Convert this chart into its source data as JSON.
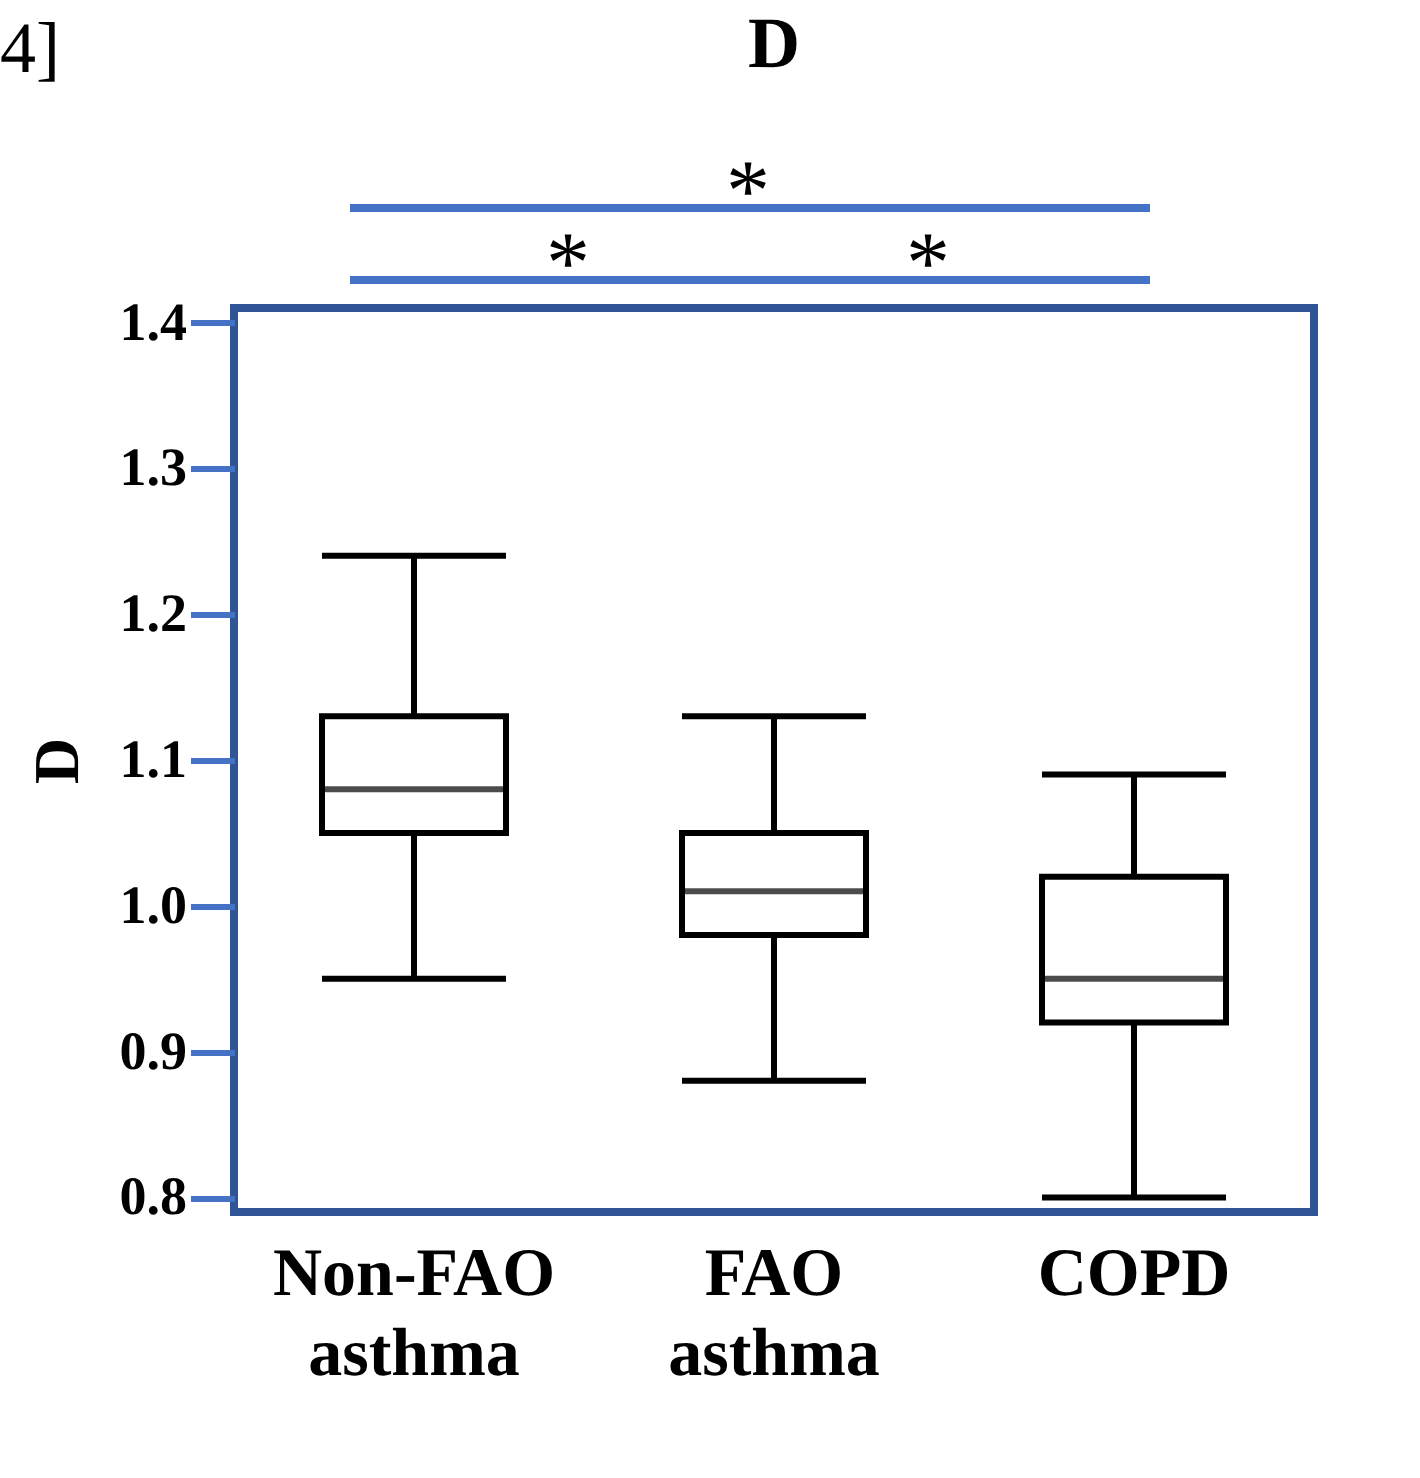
{
  "chart_data": {
    "type": "box",
    "title": "D",
    "ylabel": "D",
    "categories": [
      "Non-FAO asthma",
      "FAO asthma",
      "COPD"
    ],
    "boxes": [
      {
        "low": 0.95,
        "q1": 1.05,
        "median": 1.08,
        "q3": 1.13,
        "high": 1.24
      },
      {
        "low": 0.88,
        "q1": 0.98,
        "median": 1.01,
        "q3": 1.05,
        "high": 1.13
      },
      {
        "low": 0.8,
        "q1": 0.92,
        "median": 0.95,
        "q3": 1.02,
        "high": 1.09
      }
    ],
    "ylim": [
      0.79,
      1.41
    ],
    "yticks": [
      0.8,
      0.9,
      {
        "value": 1,
        "label": "1.0"
      },
      1.1,
      1.2,
      1.3,
      1.4
    ],
    "annotations": [
      "4]",
      "*",
      "*",
      "*"
    ]
  }
}
